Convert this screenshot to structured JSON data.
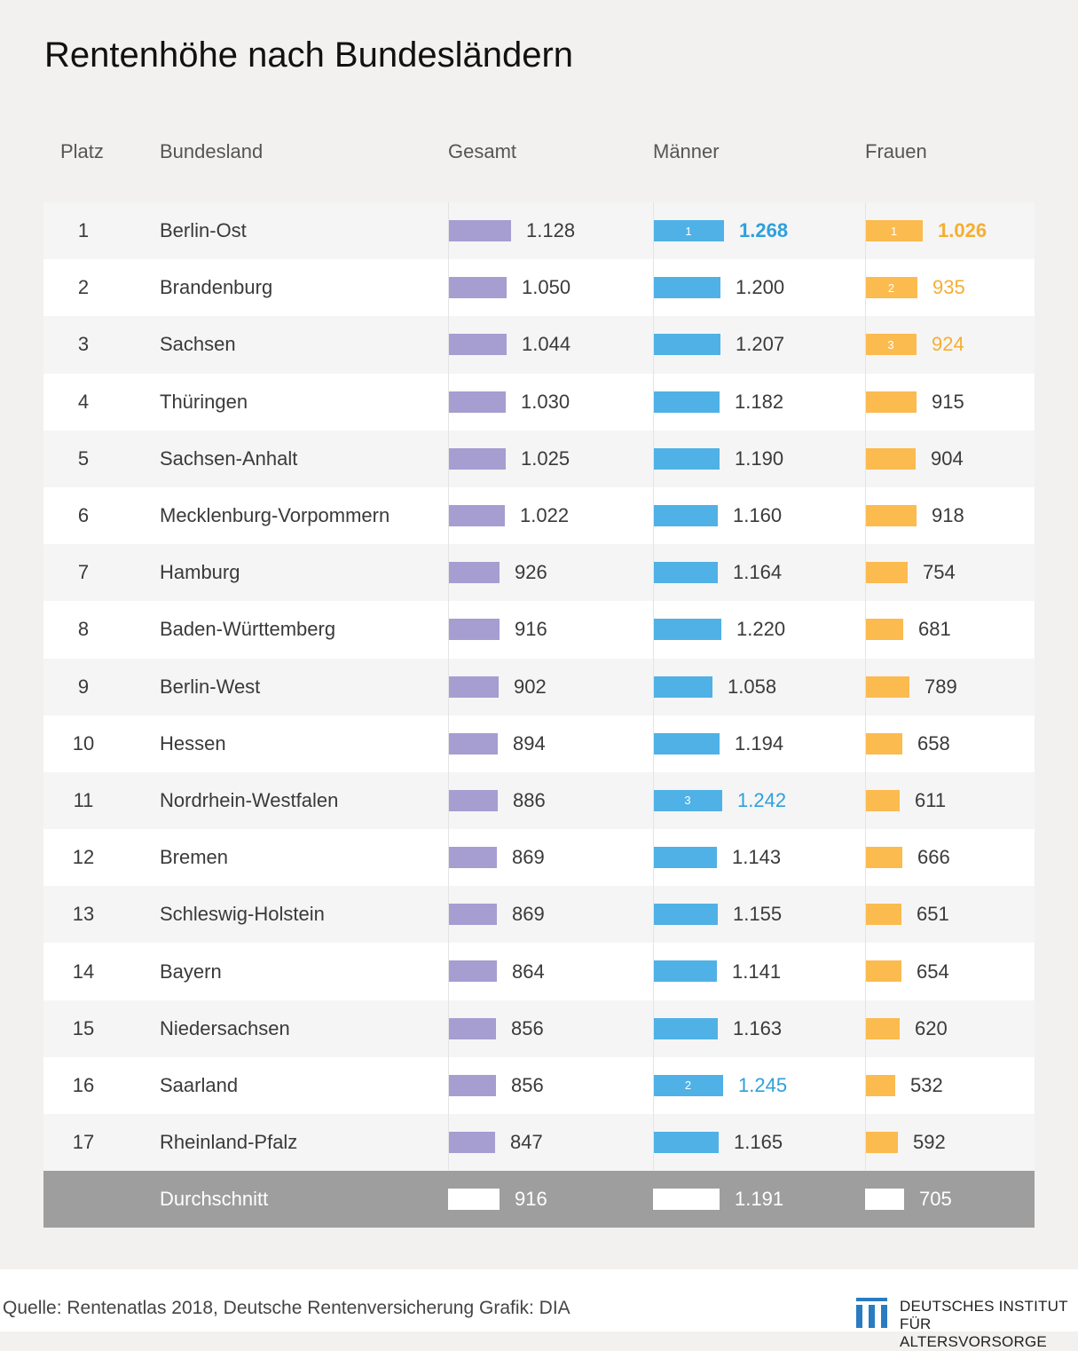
{
  "title": "Rentenhöhe nach Bundesländern",
  "headers": {
    "rank": "Platz",
    "state": "Bundesland",
    "gesamt": "Gesamt",
    "maenner": "Männer",
    "frauen": "Frauen"
  },
  "colors": {
    "gesamt": "#a69dd1",
    "maenner": "#4fb1e6",
    "frauen": "#fbbb4f",
    "avg_row": "#9e9e9e",
    "highlight_blue": "#2ea0dc",
    "highlight_orange": "#f5ae32"
  },
  "chart_data": {
    "type": "bar",
    "rows": [
      {
        "rank": "1",
        "state": "Berlin-Ost",
        "gesamt": 1128,
        "gesamt_label": "1.128",
        "maenner": 1268,
        "maenner_label": "1.268",
        "maenner_top": "1",
        "frauen": 1026,
        "frauen_label": "1.026",
        "frauen_top": "1"
      },
      {
        "rank": "2",
        "state": "Brandenburg",
        "gesamt": 1050,
        "gesamt_label": "1.050",
        "maenner": 1200,
        "maenner_label": "1.200",
        "frauen": 935,
        "frauen_label": "935",
        "frauen_top": "2"
      },
      {
        "rank": "3",
        "state": "Sachsen",
        "gesamt": 1044,
        "gesamt_label": "1.044",
        "maenner": 1207,
        "maenner_label": "1.207",
        "frauen": 924,
        "frauen_label": "924",
        "frauen_top": "3"
      },
      {
        "rank": "4",
        "state": "Thüringen",
        "gesamt": 1030,
        "gesamt_label": "1.030",
        "maenner": 1182,
        "maenner_label": "1.182",
        "frauen": 915,
        "frauen_label": "915"
      },
      {
        "rank": "5",
        "state": "Sachsen-Anhalt",
        "gesamt": 1025,
        "gesamt_label": "1.025",
        "maenner": 1190,
        "maenner_label": "1.190",
        "frauen": 904,
        "frauen_label": "904"
      },
      {
        "rank": "6",
        "state": "Mecklenburg-Vorpommern",
        "gesamt": 1022,
        "gesamt_label": "1.022",
        "maenner": 1160,
        "maenner_label": "1.160",
        "frauen": 918,
        "frauen_label": "918"
      },
      {
        "rank": "7",
        "state": "Hamburg",
        "gesamt": 926,
        "gesamt_label": "926",
        "maenner": 1164,
        "maenner_label": "1.164",
        "frauen": 754,
        "frauen_label": "754"
      },
      {
        "rank": "8",
        "state": "Baden-Württemberg",
        "gesamt": 916,
        "gesamt_label": "916",
        "maenner": 1220,
        "maenner_label": "1.220",
        "frauen": 681,
        "frauen_label": "681"
      },
      {
        "rank": "9",
        "state": "Berlin-West",
        "gesamt": 902,
        "gesamt_label": "902",
        "maenner": 1058,
        "maenner_label": "1.058",
        "frauen": 789,
        "frauen_label": "789"
      },
      {
        "rank": "10",
        "state": "Hessen",
        "gesamt": 894,
        "gesamt_label": "894",
        "maenner": 1194,
        "maenner_label": "1.194",
        "frauen": 658,
        "frauen_label": "658"
      },
      {
        "rank": "11",
        "state": "Nordrhein-Westfalen",
        "gesamt": 886,
        "gesamt_label": "886",
        "maenner": 1242,
        "maenner_label": "1.242",
        "maenner_top": "3",
        "frauen": 611,
        "frauen_label": "611"
      },
      {
        "rank": "12",
        "state": "Bremen",
        "gesamt": 869,
        "gesamt_label": "869",
        "maenner": 1143,
        "maenner_label": "1.143",
        "frauen": 666,
        "frauen_label": "666"
      },
      {
        "rank": "13",
        "state": "Schleswig-Holstein",
        "gesamt": 869,
        "gesamt_label": "869",
        "maenner": 1155,
        "maenner_label": "1.155",
        "frauen": 651,
        "frauen_label": "651"
      },
      {
        "rank": "14",
        "state": "Bayern",
        "gesamt": 864,
        "gesamt_label": "864",
        "maenner": 1141,
        "maenner_label": "1.141",
        "frauen": 654,
        "frauen_label": "654"
      },
      {
        "rank": "15",
        "state": "Niedersachsen",
        "gesamt": 856,
        "gesamt_label": "856",
        "maenner": 1163,
        "maenner_label": "1.163",
        "frauen": 620,
        "frauen_label": "620"
      },
      {
        "rank": "16",
        "state": "Saarland",
        "gesamt": 856,
        "gesamt_label": "856",
        "maenner": 1245,
        "maenner_label": "1.245",
        "maenner_top": "2",
        "frauen": 532,
        "frauen_label": "532"
      },
      {
        "rank": "17",
        "state": "Rheinland-Pfalz",
        "gesamt": 847,
        "gesamt_label": "847",
        "maenner": 1165,
        "maenner_label": "1.165",
        "frauen": 592,
        "frauen_label": "592"
      }
    ],
    "average": {
      "label": "Durchschnitt",
      "gesamt": 916,
      "gesamt_label": "916",
      "maenner": 1191,
      "maenner_label": "1.191",
      "frauen": 705,
      "frauen_label": "705"
    }
  },
  "footer": {
    "source": "Quelle: Rentenatlas 2018, Deutsche Rentenversicherung  Grafik: DIA",
    "logo_line1": "DEUTSCHES INSTITUT",
    "logo_line2": "FÜR ALTERSVORSORGE"
  }
}
